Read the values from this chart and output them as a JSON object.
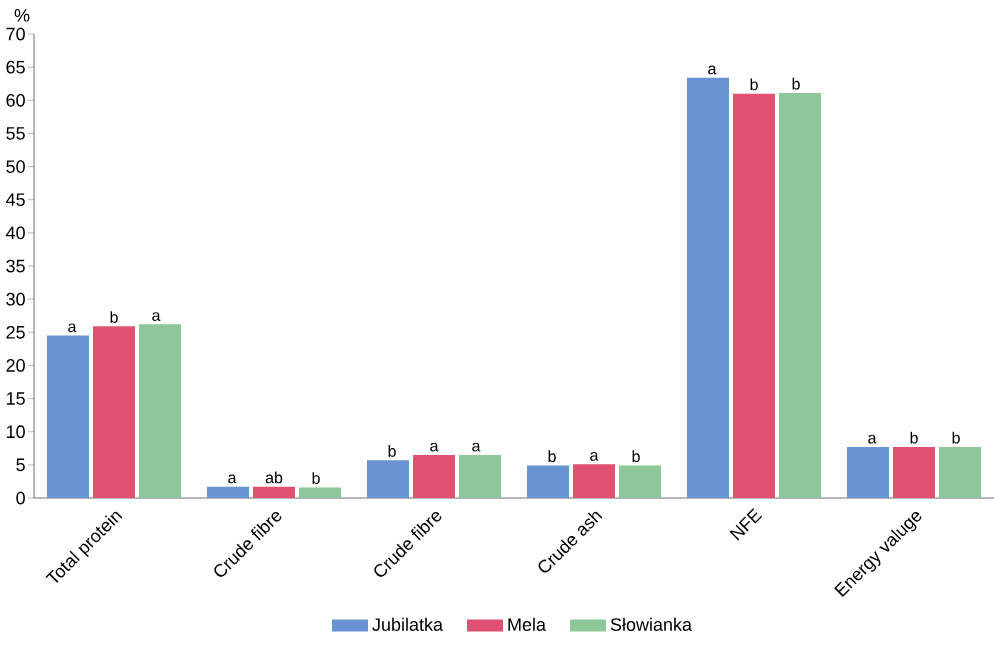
{
  "chart_data": {
    "type": "bar",
    "ylabel": "%",
    "categories": [
      "Total protein",
      "Crude fibre",
      "Crude fibre",
      "Crude ash",
      "NFE",
      "Energy valuge"
    ],
    "series": [
      {
        "name": "Jubilatka",
        "color": "#6a93d4",
        "values": [
          24.5,
          1.7,
          5.7,
          4.9,
          63.4,
          7.7
        ],
        "value_labels": [
          "a",
          "a",
          "b",
          "b",
          "a",
          "a"
        ]
      },
      {
        "name": "Mela",
        "color": "#e05073",
        "values": [
          25.9,
          1.7,
          6.5,
          5.1,
          61.0,
          7.7
        ],
        "value_labels": [
          "b",
          "ab",
          "a",
          "a",
          "b",
          "b"
        ]
      },
      {
        "name": "Słowianka",
        "color": "#8dc79a",
        "values": [
          26.2,
          1.6,
          6.5,
          4.9,
          61.1,
          7.7
        ],
        "value_labels": [
          "a",
          "b",
          "a",
          "b",
          "b",
          "b"
        ]
      }
    ],
    "ylim": [
      0,
      70
    ],
    "yticks": [
      0,
      5,
      10,
      15,
      20,
      25,
      30,
      35,
      40,
      45,
      50,
      55,
      60,
      65,
      70
    ],
    "legend": "bottom"
  }
}
